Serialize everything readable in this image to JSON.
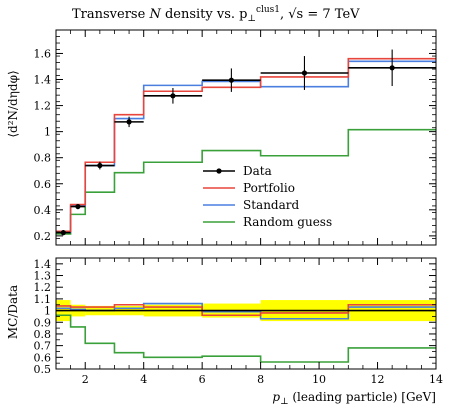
{
  "chart_data": [
    {
      "type": "line",
      "panel": "main",
      "title": "Transverse N density vs. p⊥clus1, √s = 7 TeV",
      "title_parts": {
        "main": "Transverse ",
        "var": "N",
        "mid": " density vs. p",
        "sub": "⊥",
        "sup": "clus1",
        "tail": ", √s = 7 TeV"
      },
      "ylabel": "⟨d²N/dηdφ⟩",
      "xlim": [
        1,
        14
      ],
      "ylim": [
        0.13,
        1.78
      ],
      "y_ticks": [
        0.2,
        0.4,
        0.6,
        0.8,
        1,
        1.2,
        1.4,
        1.6
      ],
      "x_ticks": [
        2,
        4,
        6,
        8,
        10,
        12,
        14
      ],
      "bin_edges": [
        1,
        1.5,
        2,
        3,
        4,
        6,
        8,
        11,
        14
      ],
      "data": {
        "name": "Data",
        "color": "#000000",
        "points": [
          {
            "x": 1.25,
            "y": 0.225,
            "err": 0.02
          },
          {
            "x": 1.75,
            "y": 0.425,
            "err": 0.02
          },
          {
            "x": 2.5,
            "y": 0.74,
            "err": 0.03
          },
          {
            "x": 3.5,
            "y": 1.075,
            "err": 0.04
          },
          {
            "x": 5,
            "y": 1.275,
            "err": 0.06
          },
          {
            "x": 7,
            "y": 1.395,
            "err": 0.09
          },
          {
            "x": 9.5,
            "y": 1.45,
            "err": 0.13
          },
          {
            "x": 12.5,
            "y": 1.49,
            "err": 0.14
          }
        ]
      },
      "series": [
        {
          "name": "Portfolio",
          "color": "#e8453c",
          "values": [
            0.235,
            0.44,
            0.765,
            1.13,
            1.31,
            1.34,
            1.42,
            1.56
          ]
        },
        {
          "name": "Standard",
          "color": "#4a7fe0",
          "values": [
            0.23,
            0.43,
            0.74,
            1.1,
            1.355,
            1.385,
            1.345,
            1.54
          ]
        },
        {
          "name": "Random guess",
          "color": "#3aa03a",
          "values": [
            0.215,
            0.365,
            0.535,
            0.685,
            0.765,
            0.855,
            0.815,
            1.015
          ]
        }
      ],
      "legend_position": "center-right",
      "grid": false
    },
    {
      "type": "line",
      "panel": "ratio",
      "ylabel": "MC/Data",
      "xlabel": "p⊥ (leading particle) [GeV]",
      "xlabel_parts": {
        "var": "p",
        "sub": "⊥",
        "rest": " (leading particle) [GeV]"
      },
      "xlim": [
        1,
        14
      ],
      "ylim": [
        0.5,
        1.45
      ],
      "y_ticks": [
        0.5,
        0.6,
        0.7,
        0.8,
        0.9,
        1,
        1.1,
        1.2,
        1.3,
        1.4
      ],
      "x_ticks": [
        2,
        4,
        6,
        8,
        10,
        12,
        14
      ],
      "uncertainty_band": {
        "color": "#ffff00",
        "low": [
          0.91,
          0.95,
          0.96,
          0.96,
          0.95,
          0.94,
          0.91,
          0.91
        ],
        "high": [
          1.09,
          1.05,
          1.04,
          1.04,
          1.05,
          1.06,
          1.09,
          1.09
        ]
      },
      "series": [
        {
          "name": "Data",
          "color": "#000000",
          "values": [
            1,
            1,
            1,
            1,
            1,
            1,
            1,
            1
          ]
        },
        {
          "name": "Portfolio",
          "color": "#e8453c",
          "values": [
            1.04,
            1.03,
            1.03,
            1.05,
            1.03,
            0.96,
            0.98,
            1.05
          ]
        },
        {
          "name": "Standard",
          "color": "#4a7fe0",
          "values": [
            1.02,
            1.01,
            1.0,
            1.02,
            1.06,
            0.99,
            0.93,
            1.03
          ]
        },
        {
          "name": "Random guess",
          "color": "#3aa03a",
          "values": [
            0.96,
            0.86,
            0.72,
            0.64,
            0.6,
            0.61,
            0.56,
            0.68
          ]
        }
      ],
      "grid": false
    }
  ]
}
